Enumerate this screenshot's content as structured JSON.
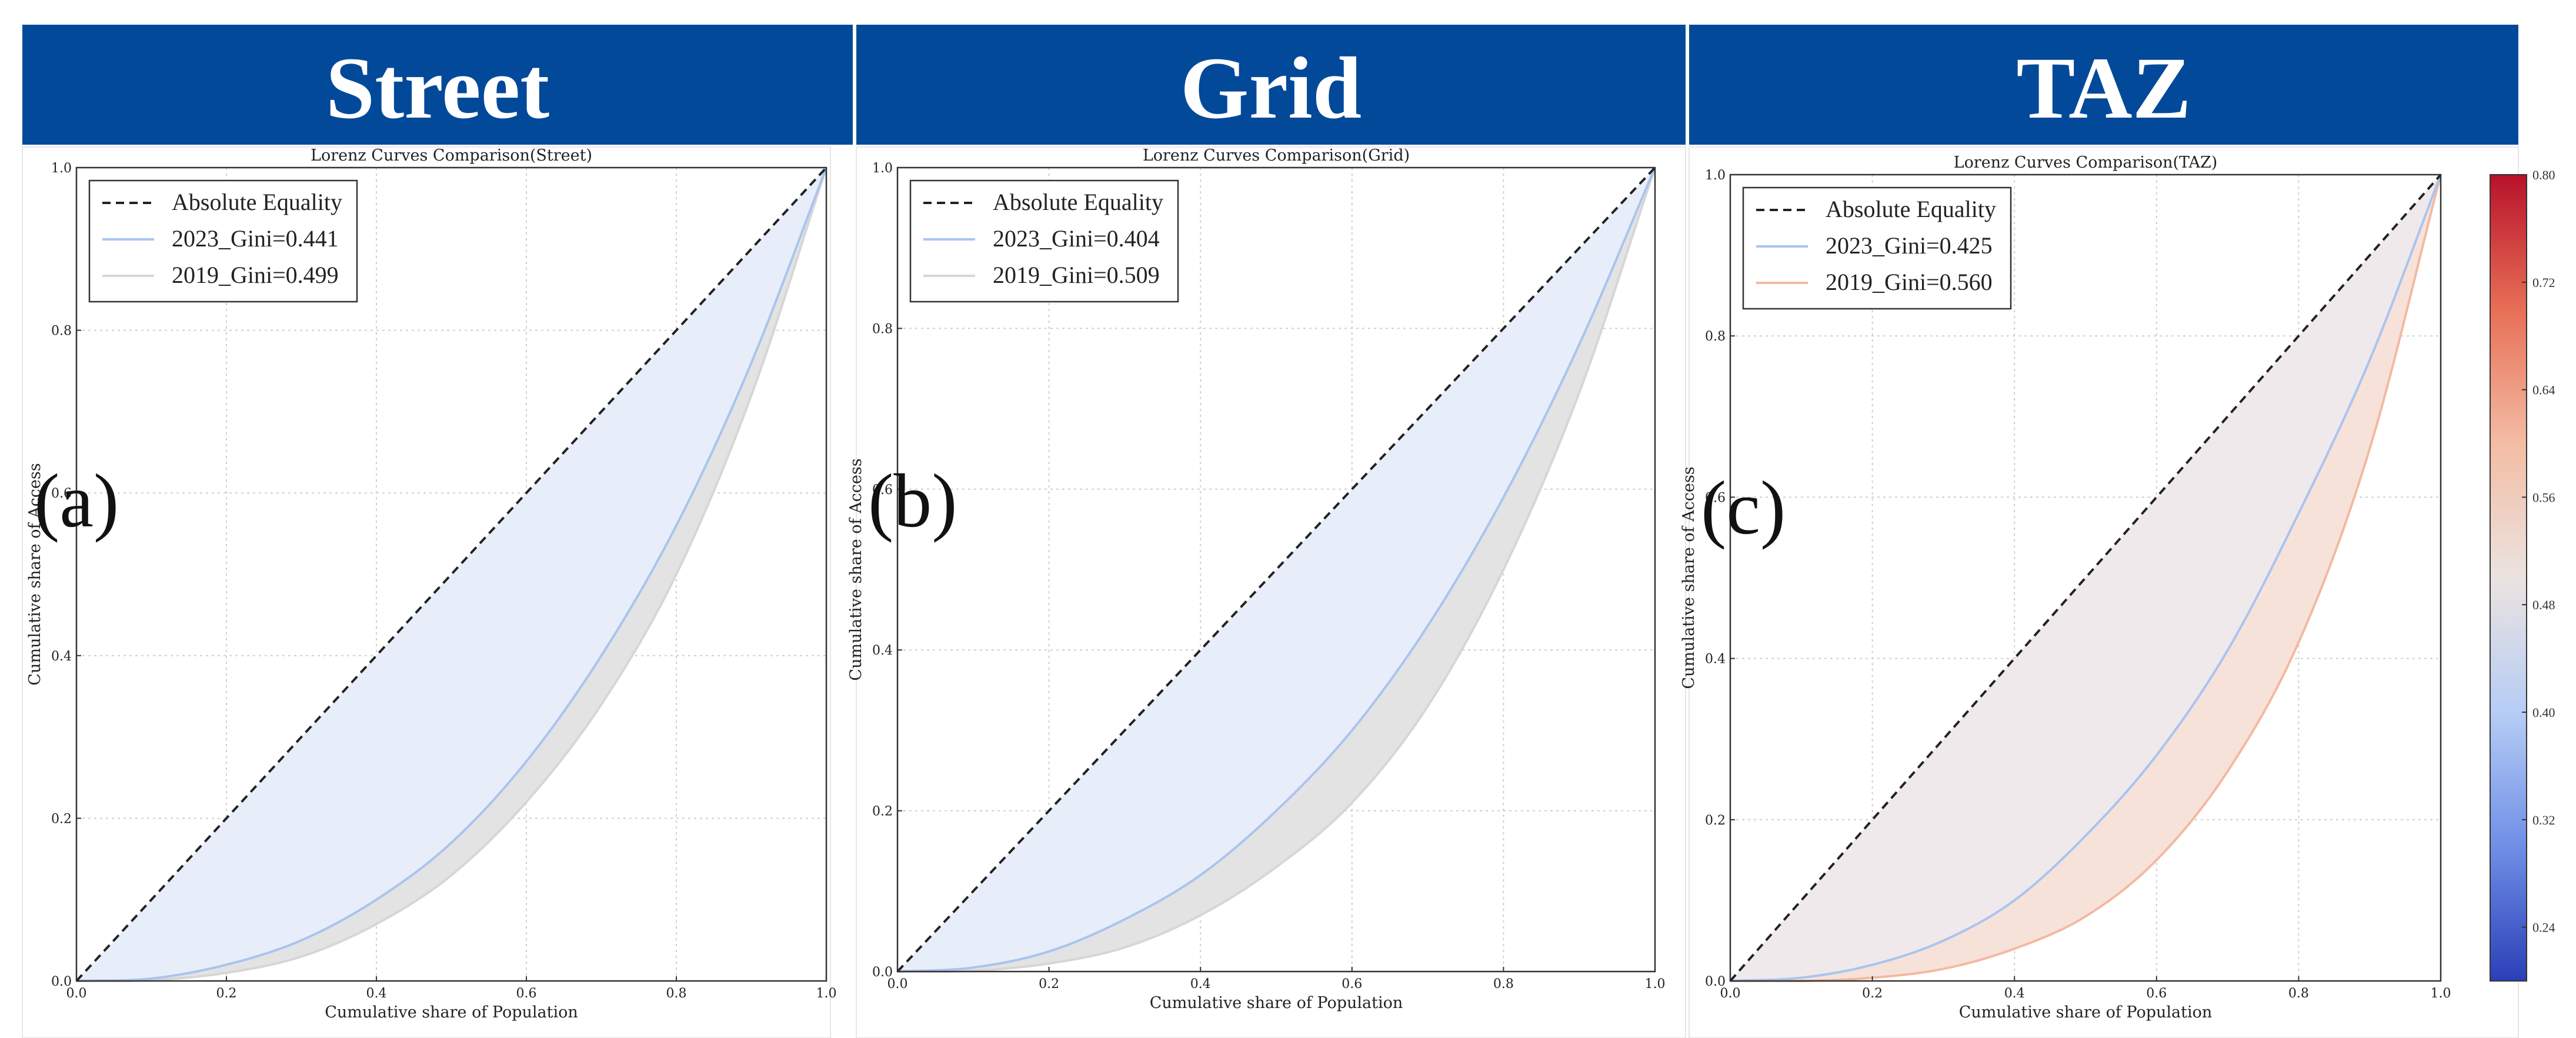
{
  "headers": [
    "Street",
    "Grid",
    "TAZ"
  ],
  "colors": {
    "header_bg": "#03499a",
    "equality_line": "#222222",
    "curve_2023": "#a9c4ef",
    "curve_2019_gray": "#d6d6d6",
    "curve_2019_orange": "#f3b9a0",
    "fill_2023": "#e8eef9",
    "fill_2019_gray": "#e3e3e3",
    "fill_2019_orange": "#f7e2da",
    "fill_equality_taz": "#efe9ec"
  },
  "chart_data": [
    {
      "type": "line",
      "panel_letter": "(a)",
      "title": "Lorenz Curves Comparison(Street)",
      "xlabel": "Cumulative share of Population",
      "ylabel": "Cumulative share of Access",
      "xlim": [
        0,
        1
      ],
      "ylim": [
        0,
        1
      ],
      "x_ticks": [
        "0.0",
        "0.2",
        "0.4",
        "0.6",
        "0.8",
        "1.0"
      ],
      "y_ticks": [
        "0.0",
        "0.2",
        "0.4",
        "0.6",
        "0.8",
        "1.0"
      ],
      "grid": true,
      "legend_position": "top-left",
      "series": [
        {
          "name": "Absolute Equality",
          "style": "dashed",
          "color": "#222222",
          "x": [
            0,
            1
          ],
          "y": [
            0,
            1
          ]
        },
        {
          "name": "2023_Gini=0.441",
          "color": "#a9c4ef",
          "x": [
            0,
            0.1,
            0.2,
            0.3,
            0.4,
            0.5,
            0.6,
            0.7,
            0.8,
            0.9,
            1.0
          ],
          "y": [
            0,
            0.003,
            0.02,
            0.05,
            0.1,
            0.17,
            0.27,
            0.4,
            0.56,
            0.76,
            1.0
          ]
        },
        {
          "name": "2019_Gini=0.499",
          "color": "#d6d6d6",
          "x": [
            0,
            0.1,
            0.2,
            0.3,
            0.4,
            0.5,
            0.6,
            0.7,
            0.8,
            0.9,
            1.0
          ],
          "y": [
            0,
            0.001,
            0.01,
            0.03,
            0.07,
            0.13,
            0.22,
            0.34,
            0.5,
            0.72,
            1.0
          ]
        }
      ]
    },
    {
      "type": "line",
      "panel_letter": "(b)",
      "title": "Lorenz Curves Comparison(Grid)",
      "xlabel": "Cumulative share of Population",
      "ylabel": "Cumulative share of Access",
      "xlim": [
        0,
        1
      ],
      "ylim": [
        0,
        1
      ],
      "x_ticks": [
        "0.0",
        "0.2",
        "0.4",
        "0.6",
        "0.8",
        "1.0"
      ],
      "y_ticks": [
        "0.0",
        "0.2",
        "0.4",
        "0.6",
        "0.8",
        "1.0"
      ],
      "grid": true,
      "legend_position": "top-left",
      "series": [
        {
          "name": "Absolute Equality",
          "style": "dashed",
          "color": "#222222",
          "x": [
            0,
            1
          ],
          "y": [
            0,
            1
          ]
        },
        {
          "name": "2023_Gini=0.404",
          "color": "#a9c4ef",
          "x": [
            0,
            0.1,
            0.2,
            0.3,
            0.4,
            0.5,
            0.6,
            0.7,
            0.8,
            0.9,
            1.0
          ],
          "y": [
            0,
            0.005,
            0.025,
            0.065,
            0.12,
            0.2,
            0.3,
            0.43,
            0.59,
            0.78,
            1.0
          ]
        },
        {
          "name": "2019_Gini=0.509",
          "color": "#d6d6d6",
          "x": [
            0,
            0.1,
            0.2,
            0.3,
            0.4,
            0.5,
            0.6,
            0.7,
            0.8,
            0.9,
            1.0
          ],
          "y": [
            0,
            0.001,
            0.01,
            0.03,
            0.07,
            0.13,
            0.21,
            0.33,
            0.5,
            0.72,
            1.0
          ]
        }
      ]
    },
    {
      "type": "line",
      "panel_letter": "(c)",
      "title": "Lorenz Curves Comparison(TAZ)",
      "xlabel": "Cumulative share of Population",
      "ylabel": "Cumulative share of Access",
      "xlim": [
        0,
        1
      ],
      "ylim": [
        0,
        1
      ],
      "x_ticks": [
        "0.0",
        "0.2",
        "0.4",
        "0.6",
        "0.8",
        "1.0"
      ],
      "y_ticks": [
        "0.0",
        "0.2",
        "0.4",
        "0.6",
        "0.8",
        "1.0"
      ],
      "grid": true,
      "legend_position": "top-left",
      "series": [
        {
          "name": "Absolute Equality",
          "style": "dashed",
          "color": "#222222",
          "x": [
            0,
            1
          ],
          "y": [
            0,
            1
          ]
        },
        {
          "name": "2023_Gini=0.425",
          "color": "#a9c4ef",
          "x": [
            0,
            0.1,
            0.2,
            0.3,
            0.4,
            0.5,
            0.6,
            0.7,
            0.8,
            0.9,
            1.0
          ],
          "y": [
            0,
            0.004,
            0.02,
            0.05,
            0.1,
            0.18,
            0.28,
            0.41,
            0.58,
            0.77,
            1.0
          ]
        },
        {
          "name": "2019_Gini=0.560",
          "color": "#f3b9a0",
          "x": [
            0,
            0.1,
            0.2,
            0.3,
            0.4,
            0.5,
            0.6,
            0.7,
            0.8,
            0.9,
            1.0
          ],
          "y": [
            0,
            0.0,
            0.004,
            0.015,
            0.04,
            0.08,
            0.15,
            0.26,
            0.42,
            0.66,
            1.0
          ]
        }
      ]
    }
  ],
  "colorbar": {
    "type": "colorbar",
    "min": 0.2,
    "max": 0.8,
    "ticks": [
      "0.24",
      "0.32",
      "0.40",
      "0.48",
      "0.56",
      "0.64",
      "0.72",
      "0.80"
    ],
    "colors": [
      "#2b3fb8",
      "#6f8fe6",
      "#b6cdf5",
      "#ebe3e0",
      "#f4bca4",
      "#e76f56",
      "#b8112a"
    ]
  }
}
